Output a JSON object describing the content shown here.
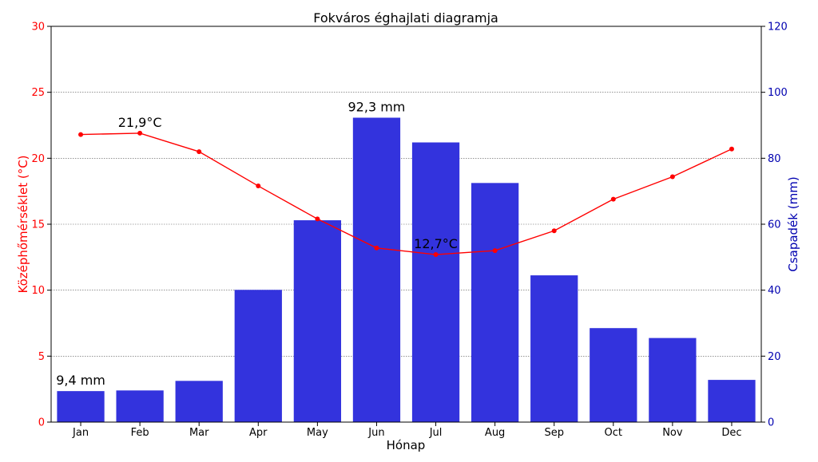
{
  "chart_data": {
    "type": "bar+line",
    "title": "Fokváros éghajlati diagramja",
    "xlabel": "Hónap",
    "categories": [
      "Jan",
      "Feb",
      "Mar",
      "Apr",
      "May",
      "Jun",
      "Jul",
      "Aug",
      "Sep",
      "Oct",
      "Nov",
      "Dec"
    ],
    "left_axis": {
      "label": "Középhőmérséklet (°C)",
      "range": [
        0,
        30
      ],
      "ticks": [
        "0",
        "5",
        "10",
        "15",
        "20",
        "25",
        "30"
      ],
      "color": "#ff0000"
    },
    "right_axis": {
      "label": "Csapadék (mm)",
      "range": [
        0,
        120
      ],
      "ticks": [
        "0",
        "20",
        "40",
        "60",
        "80",
        "100",
        "120"
      ],
      "color": "#0000b0"
    },
    "temperature": {
      "axis": "left",
      "color": "#ff0000",
      "values": [
        21.8,
        21.9,
        20.5,
        17.9,
        15.4,
        13.2,
        12.7,
        13.0,
        14.5,
        16.9,
        18.6,
        20.7
      ]
    },
    "precipitation": {
      "axis": "right",
      "color": "#3333dd",
      "values": [
        9.4,
        9.6,
        12.5,
        40.1,
        61.2,
        92.3,
        84.8,
        72.5,
        44.5,
        28.5,
        25.5,
        12.8
      ]
    },
    "annotations": [
      {
        "text": "9,4 mm",
        "series": "precipitation",
        "index": 0
      },
      {
        "text": "92,3 mm",
        "series": "precipitation",
        "index": 5
      },
      {
        "text": "21,9°C",
        "series": "temperature",
        "index": 1
      },
      {
        "text": "12,7°C",
        "series": "temperature",
        "index": 6
      }
    ],
    "grid": true
  }
}
